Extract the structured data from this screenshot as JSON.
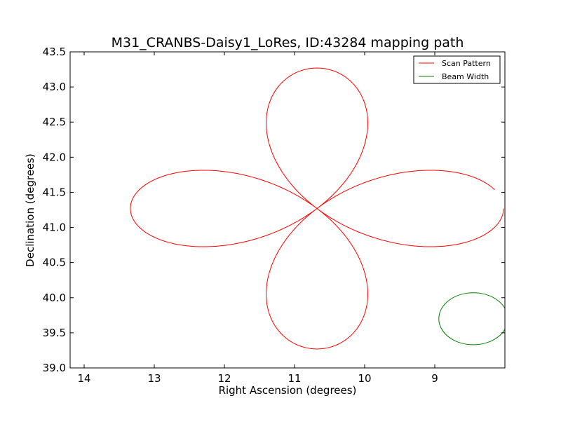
{
  "chart_data": {
    "type": "line",
    "title": "M31_CRANBS-Daisy1_LoRes, ID:43284 mapping path",
    "xlabel": "Right Ascension (degrees)",
    "ylabel": "Declination (degrees)",
    "xlim": [
      14.2,
      8.0
    ],
    "ylim": [
      39.0,
      43.5
    ],
    "x_reversed": true,
    "grid": false,
    "legend_position": "top-right",
    "x_ticks": [
      14,
      13,
      12,
      11,
      10,
      9
    ],
    "x_tick_labels": [
      "14",
      "13",
      "12",
      "11",
      "10",
      "9"
    ],
    "y_ticks": [
      39.0,
      39.5,
      40.0,
      40.5,
      41.0,
      41.5,
      42.0,
      42.5,
      43.0,
      43.5
    ],
    "y_tick_labels": [
      "39.0",
      "39.5",
      "40.0",
      "40.5",
      "41.0",
      "41.5",
      "42.0",
      "42.5",
      "43.0",
      "43.5"
    ],
    "series": [
      {
        "name": "Scan Pattern",
        "color": "#ff0000",
        "pattern": "daisy",
        "center": [
          10.68,
          41.27
        ],
        "radius_deg": 2.0,
        "petals": 4,
        "start_angle_deg": 180,
        "sweep_deg": 352
      },
      {
        "name": "Beam Width",
        "color": "#008000",
        "shape": "circle",
        "center": [
          8.45,
          39.7
        ],
        "radius_dec_deg": 0.37
      }
    ]
  }
}
